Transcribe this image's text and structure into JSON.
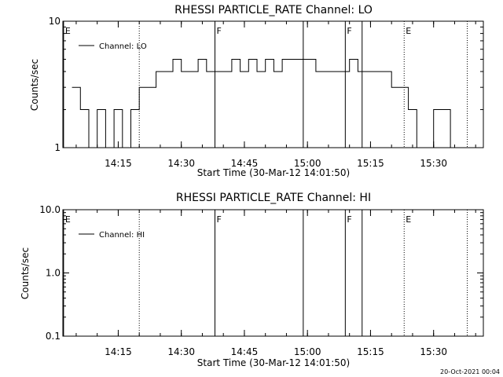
{
  "chart_data": [
    {
      "type": "line",
      "title": "RHESSI PARTICLE_RATE Channel: LO",
      "xlabel": "Start Time (30-Mar-12 14:01:50)",
      "ylabel": "Counts/sec",
      "y_scale": "log",
      "ylim": [
        1,
        10
      ],
      "xlim": [
        "14:01:50",
        "15:41:50"
      ],
      "y_ticks": [
        "1",
        "10"
      ],
      "x_ticks": [
        "14:15",
        "14:30",
        "14:45",
        "15:00",
        "15:15",
        "15:30"
      ],
      "legend": "top-left",
      "series": [
        {
          "name": "Channel: LO",
          "x": [
            "14:04",
            "14:06",
            "14:08",
            "14:10",
            "14:12",
            "14:14",
            "14:16",
            "14:18",
            "14:20",
            "14:22",
            "14:24",
            "14:26",
            "14:28",
            "14:30",
            "14:32",
            "14:34",
            "14:36",
            "14:38",
            "14:40",
            "14:42",
            "14:44",
            "14:46",
            "14:48",
            "14:50",
            "14:52",
            "14:54",
            "14:56",
            "14:58",
            "15:00",
            "15:02",
            "15:04",
            "15:06",
            "15:08",
            "15:10",
            "15:12",
            "15:14",
            "15:16",
            "15:18",
            "15:20",
            "15:22",
            "15:24",
            "15:26",
            "15:28",
            "15:30",
            "15:32",
            "15:34"
          ],
          "values": [
            3,
            2,
            1,
            2,
            1,
            2,
            1,
            2,
            3,
            3,
            4,
            4,
            5,
            4,
            4,
            5,
            4,
            4,
            4,
            5,
            4,
            5,
            4,
            5,
            4,
            5,
            5,
            5,
            5,
            4,
            4,
            4,
            4,
            5,
            4,
            4,
            4,
            4,
            3,
            3,
            2,
            1,
            1,
            2,
            2,
            1
          ]
        }
      ],
      "markers": [
        {
          "x": "14:02",
          "label": "E",
          "style": "solid"
        },
        {
          "x": "14:20",
          "label": "",
          "style": "dotted"
        },
        {
          "x": "14:38",
          "label": "F",
          "style": "solid"
        },
        {
          "x": "14:59",
          "label": "",
          "style": "solid"
        },
        {
          "x": "15:09",
          "label": "F",
          "style": "solid"
        },
        {
          "x": "15:13",
          "label": "",
          "style": "solid"
        },
        {
          "x": "15:23",
          "label": "E",
          "style": "dotted"
        },
        {
          "x": "15:38",
          "label": "",
          "style": "dotted"
        }
      ]
    },
    {
      "type": "line",
      "title": "RHESSI PARTICLE_RATE Channel: HI",
      "xlabel": "Start Time (30-Mar-12 14:01:50)",
      "ylabel": "Counts/sec",
      "y_scale": "log",
      "ylim": [
        0.1,
        10
      ],
      "xlim": [
        "14:01:50",
        "15:41:50"
      ],
      "y_ticks": [
        "0.1",
        "1.0",
        "10.0"
      ],
      "x_ticks": [
        "14:15",
        "14:30",
        "14:45",
        "15:00",
        "15:15",
        "15:30"
      ],
      "legend": "top-left",
      "series": [
        {
          "name": "Channel: HI",
          "x": [],
          "values": []
        }
      ],
      "markers": [
        {
          "x": "14:02",
          "label": "E",
          "style": "solid"
        },
        {
          "x": "14:20",
          "label": "",
          "style": "dotted"
        },
        {
          "x": "14:38",
          "label": "F",
          "style": "solid"
        },
        {
          "x": "14:59",
          "label": "",
          "style": "solid"
        },
        {
          "x": "15:09",
          "label": "F",
          "style": "solid"
        },
        {
          "x": "15:13",
          "label": "",
          "style": "solid"
        },
        {
          "x": "15:23",
          "label": "E",
          "style": "dotted"
        },
        {
          "x": "15:38",
          "label": "",
          "style": "dotted"
        }
      ]
    }
  ],
  "footer": {
    "timestamp": "20-Oct-2021 00:04"
  }
}
